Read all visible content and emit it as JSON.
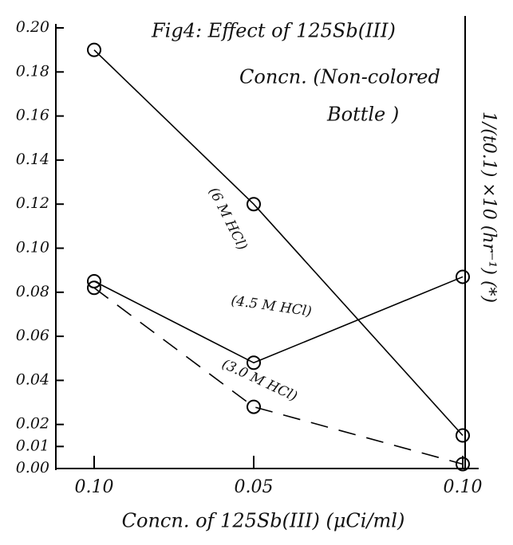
{
  "chart_data": {
    "type": "line",
    "title": [
      "Fig4: Effect of 125Sb(III)",
      "Concn. (Non-colored",
      "Bottle )"
    ],
    "x_label": "Concn. of 125Sb(III) (μCi/ml)",
    "y2_label": "1/(t0.1) ×10 (hr⁻¹) (*)",
    "categories": [
      "0.10",
      "0.05",
      "0.10"
    ],
    "ylim": [
      0,
      0.2
    ],
    "yticks": [
      {
        "value": 0.2,
        "label": "0.20"
      },
      {
        "value": 0.18,
        "label": "0.18"
      },
      {
        "value": 0.16,
        "label": "0.16"
      },
      {
        "value": 0.14,
        "label": "0.14"
      },
      {
        "value": 0.12,
        "label": "0.12"
      },
      {
        "value": 0.1,
        "label": "0.10"
      },
      {
        "value": 0.08,
        "label": "0.08"
      },
      {
        "value": 0.06,
        "label": "0.06"
      },
      {
        "value": 0.04,
        "label": "0.04"
      },
      {
        "value": 0.02,
        "label": "0.02"
      },
      0.01,
      {
        "value": 0,
        "label": "0.00"
      }
    ],
    "series": [
      {
        "name": "(6 M HCl)",
        "color": "#000000",
        "dash": false,
        "values": [
          0.19,
          0.12,
          0.015
        ]
      },
      {
        "name": "(4.5 M HCl)",
        "color": "#000000",
        "dash": false,
        "values": [
          0.085,
          0.048,
          0.087
        ]
      },
      {
        "name": "(3.0 M HCl)",
        "color": "#000000",
        "dash": true,
        "values": [
          0.082,
          0.028,
          0.002
        ]
      }
    ]
  }
}
